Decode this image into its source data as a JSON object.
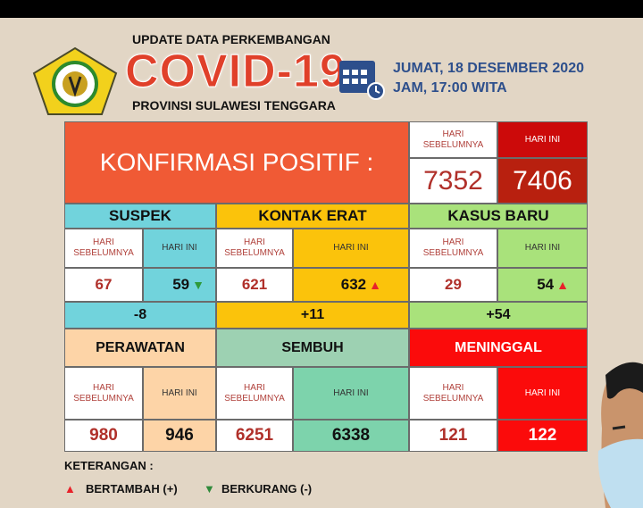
{
  "header": {
    "line1": "UPDATE DATA PERKEMBANGAN",
    "title": "COVID-19",
    "line3": "PROVINSI SULAWESI TENGGARA",
    "date": "JUMAT, 18 DESEMBER 2020",
    "time": "JAM, 17:00 WITA",
    "logo_text": "SULAWESI TENGGARA"
  },
  "labels": {
    "prev": "HARI SEBELUMNYA",
    "today": "HARI INI"
  },
  "konfirmasi": {
    "title": "KONFIRMASI POSITIF :",
    "prev": "7352",
    "today": "7406"
  },
  "suspek": {
    "title": "SUSPEK",
    "prev": "67",
    "today": "59",
    "trend": "down",
    "diff": "-8"
  },
  "kontak": {
    "title": "KONTAK ERAT",
    "prev": "621",
    "today": "632",
    "trend": "up",
    "diff": "+11"
  },
  "kasus": {
    "title": "KASUS BARU",
    "prev": "29",
    "today": "54",
    "trend": "up",
    "diff": "+54"
  },
  "perawatan": {
    "title": "PERAWATAN",
    "prev": "980",
    "today": "946"
  },
  "sembuh": {
    "title": "SEMBUH",
    "prev": "6251",
    "today": "6338"
  },
  "meninggal": {
    "title": "MENINGGAL",
    "prev": "121",
    "today": "122"
  },
  "legend": {
    "title": "KETERANGAN :",
    "up": "BERTAMBAH (+)",
    "down": "BERKURANG (-)"
  },
  "colors": {
    "konfirmasi": "#f05a35",
    "today_red": "#b8200f",
    "up": "#e8222a",
    "down": "#2f8a3a"
  },
  "icons": {
    "up": "▲",
    "down": "▼"
  }
}
